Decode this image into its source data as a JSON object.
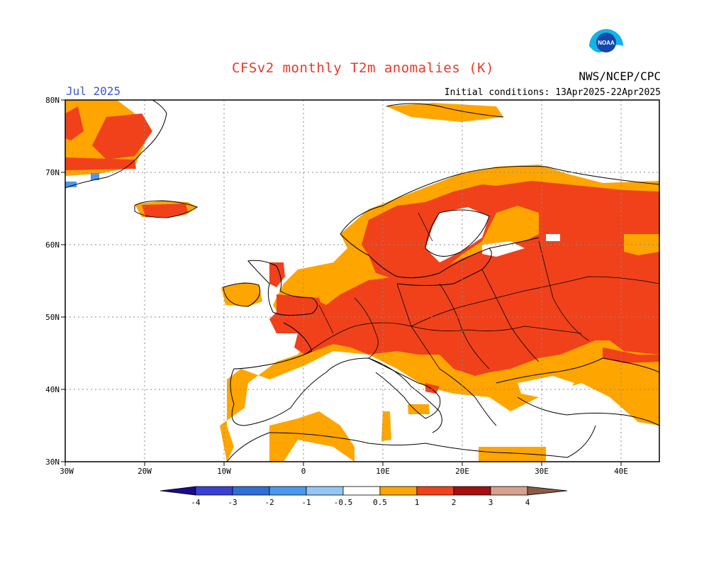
{
  "header": {
    "title": "CFSv2 monthly T2m anomalies (K)",
    "agency": "NWS/NCEP/CPC",
    "month": "Jul 2025",
    "initial_conditions": "Initial conditions: 13Apr2025-22Apr2025",
    "logo_text": "NOAA"
  },
  "map": {
    "region": "Europe",
    "lon_range": [
      -30,
      45
    ],
    "lat_range": [
      30,
      80
    ],
    "lat_ticks": [
      "80N",
      "70N",
      "60N",
      "50N",
      "40N",
      "30N"
    ],
    "lon_ticks": [
      "30W",
      "20W",
      "10W",
      "0",
      "10E",
      "20E",
      "30E",
      "40E"
    ],
    "gridlines": true
  },
  "legend": {
    "labels": [
      "-4",
      "-3",
      "-2",
      "-1",
      "-0.5",
      "0.5",
      "1",
      "2",
      "3",
      "4"
    ],
    "colors": [
      "#1b0a8c",
      "#3a3fd6",
      "#2e6fd8",
      "#4b98ee",
      "#93c6f5",
      "#ffffff",
      "#ffa500",
      "#f0411a",
      "#a80f0f",
      "#d7a18e",
      "#8c5a44"
    ]
  },
  "colors": {
    "anom_05_1": "#ffa500",
    "anom_1_2": "#f0411a",
    "anom_neg": "#4b98ee",
    "title": "#e8392a",
    "month": "#3a56d6"
  }
}
